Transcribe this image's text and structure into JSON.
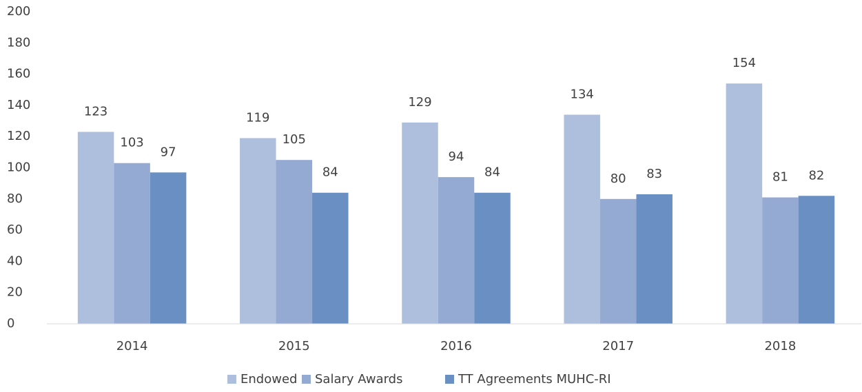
{
  "chart_data": {
    "type": "bar",
    "categories": [
      "2014",
      "2015",
      "2016",
      "2017",
      "2018"
    ],
    "series": [
      {
        "name": "Endowed",
        "color": "#adbfdc",
        "values": [
          123,
          119,
          129,
          134,
          154
        ]
      },
      {
        "name": "Salary Awards",
        "color": "#95aad3",
        "values": [
          103,
          105,
          94,
          80,
          81
        ]
      },
      {
        "name": "TT Agreements MUHC-RI",
        "color": "#6a8fc3",
        "values": [
          97,
          84,
          84,
          83,
          82
        ]
      }
    ],
    "ylim": [
      0,
      200
    ],
    "yticks": [
      0,
      20,
      40,
      60,
      80,
      100,
      120,
      140,
      160,
      180,
      200
    ],
    "grid": false,
    "legend": "bottom"
  }
}
